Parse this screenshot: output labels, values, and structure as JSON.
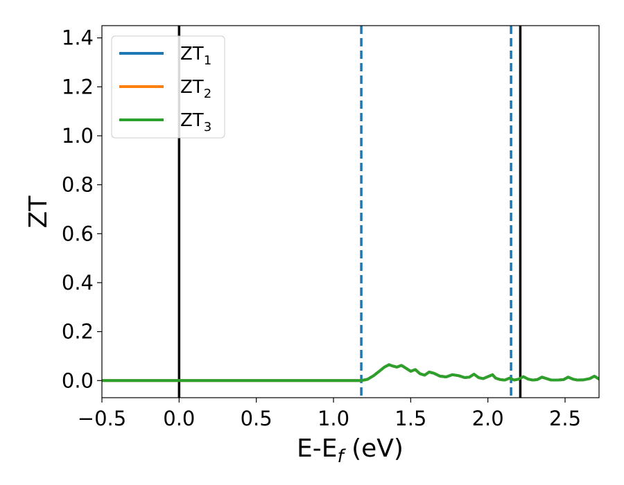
{
  "chart_data": {
    "type": "line",
    "xlabel": "E-E",
    "xlabel_sub": "f",
    "xlabel_unit": " (eV)",
    "ylabel": "ZT",
    "xlim": [
      -0.5,
      2.72
    ],
    "ylim": [
      -0.07,
      1.45
    ],
    "xticks": [
      -0.5,
      0.0,
      0.5,
      1.0,
      1.5,
      2.0,
      2.5
    ],
    "xtick_labels": [
      "−0.5",
      "0.0",
      "0.5",
      "1.0",
      "1.5",
      "2.0",
      "2.5"
    ],
    "yticks": [
      0.0,
      0.2,
      0.4,
      0.6,
      0.8,
      1.0,
      1.2,
      1.4
    ],
    "ytick_labels": [
      "0.0",
      "0.2",
      "0.4",
      "0.6",
      "0.8",
      "1.0",
      "1.2",
      "1.4"
    ],
    "grid": false,
    "legend_position": "top-left",
    "vlines": [
      {
        "x": 0.0,
        "style": "solid",
        "color": "#000000"
      },
      {
        "x": 2.21,
        "style": "solid",
        "color": "#000000"
      },
      {
        "x": 1.18,
        "style": "dashed",
        "color": "#1f77b4"
      },
      {
        "x": 2.15,
        "style": "dashed",
        "color": "#1f77b4"
      }
    ],
    "series": [
      {
        "name": "ZT",
        "sub": "1",
        "color": "#1f77b4",
        "x": [
          -0.5,
          1.18,
          1.22,
          1.26,
          1.3,
          1.33,
          1.36,
          1.38,
          1.41,
          1.44,
          1.47,
          1.5,
          1.53,
          1.56,
          1.59,
          1.62,
          1.65,
          1.69,
          1.73,
          1.77,
          1.81,
          1.85,
          1.88,
          1.91,
          1.94,
          1.97,
          2.0,
          2.03,
          2.05,
          2.08,
          2.11,
          2.14,
          2.17,
          2.2,
          2.23,
          2.26,
          2.29,
          2.32,
          2.35,
          2.38,
          2.41,
          2.45,
          2.49,
          2.52,
          2.55,
          2.58,
          2.62,
          2.66,
          2.69,
          2.72
        ],
        "y": [
          0.0,
          0.0,
          0.005,
          0.02,
          0.04,
          0.055,
          0.065,
          0.06,
          0.055,
          0.062,
          0.05,
          0.038,
          0.045,
          0.028,
          0.022,
          0.035,
          0.03,
          0.018,
          0.015,
          0.024,
          0.02,
          0.012,
          0.014,
          0.026,
          0.012,
          0.008,
          0.016,
          0.024,
          0.01,
          0.004,
          0.002,
          0.01,
          0.002,
          0.006,
          0.016,
          0.006,
          0.002,
          0.004,
          0.014,
          0.008,
          0.002,
          0.002,
          0.004,
          0.014,
          0.006,
          0.002,
          0.003,
          0.008,
          0.018,
          0.006
        ]
      },
      {
        "name": "ZT",
        "sub": "2",
        "color": "#ff7f0e",
        "x": [
          -0.5,
          1.18,
          1.22,
          1.26,
          1.3,
          1.33,
          1.36,
          1.38,
          1.41,
          1.44,
          1.47,
          1.5,
          1.53,
          1.56,
          1.59,
          1.62,
          1.65,
          1.69,
          1.73,
          1.77,
          1.81,
          1.85,
          1.88,
          1.91,
          1.94,
          1.97,
          2.0,
          2.03,
          2.05,
          2.08,
          2.11,
          2.14,
          2.17,
          2.2,
          2.23,
          2.26,
          2.29,
          2.32,
          2.35,
          2.38,
          2.41,
          2.45,
          2.49,
          2.52,
          2.55,
          2.58,
          2.62,
          2.66,
          2.69,
          2.72
        ],
        "y": [
          0.0,
          0.0,
          0.005,
          0.02,
          0.04,
          0.055,
          0.065,
          0.06,
          0.055,
          0.062,
          0.05,
          0.038,
          0.045,
          0.028,
          0.022,
          0.035,
          0.03,
          0.018,
          0.015,
          0.024,
          0.02,
          0.012,
          0.014,
          0.026,
          0.012,
          0.008,
          0.016,
          0.024,
          0.01,
          0.004,
          0.002,
          0.01,
          0.002,
          0.006,
          0.016,
          0.006,
          0.002,
          0.004,
          0.014,
          0.008,
          0.002,
          0.002,
          0.004,
          0.014,
          0.006,
          0.002,
          0.003,
          0.008,
          0.018,
          0.006
        ]
      },
      {
        "name": "ZT",
        "sub": "3",
        "color": "#2ca02c",
        "x": [
          -0.5,
          1.18,
          1.22,
          1.26,
          1.3,
          1.33,
          1.36,
          1.38,
          1.41,
          1.44,
          1.47,
          1.5,
          1.53,
          1.56,
          1.59,
          1.62,
          1.65,
          1.69,
          1.73,
          1.77,
          1.81,
          1.85,
          1.88,
          1.91,
          1.94,
          1.97,
          2.0,
          2.03,
          2.05,
          2.08,
          2.11,
          2.14,
          2.17,
          2.2,
          2.23,
          2.26,
          2.29,
          2.32,
          2.35,
          2.38,
          2.41,
          2.45,
          2.49,
          2.52,
          2.55,
          2.58,
          2.62,
          2.66,
          2.69,
          2.72
        ],
        "y": [
          0.0,
          0.0,
          0.005,
          0.02,
          0.04,
          0.055,
          0.065,
          0.06,
          0.055,
          0.062,
          0.05,
          0.038,
          0.045,
          0.028,
          0.022,
          0.035,
          0.03,
          0.018,
          0.015,
          0.024,
          0.02,
          0.012,
          0.014,
          0.026,
          0.012,
          0.008,
          0.016,
          0.024,
          0.01,
          0.004,
          0.002,
          0.01,
          0.002,
          0.006,
          0.016,
          0.006,
          0.002,
          0.004,
          0.014,
          0.008,
          0.002,
          0.002,
          0.004,
          0.014,
          0.006,
          0.002,
          0.003,
          0.008,
          0.018,
          0.006
        ]
      }
    ]
  }
}
